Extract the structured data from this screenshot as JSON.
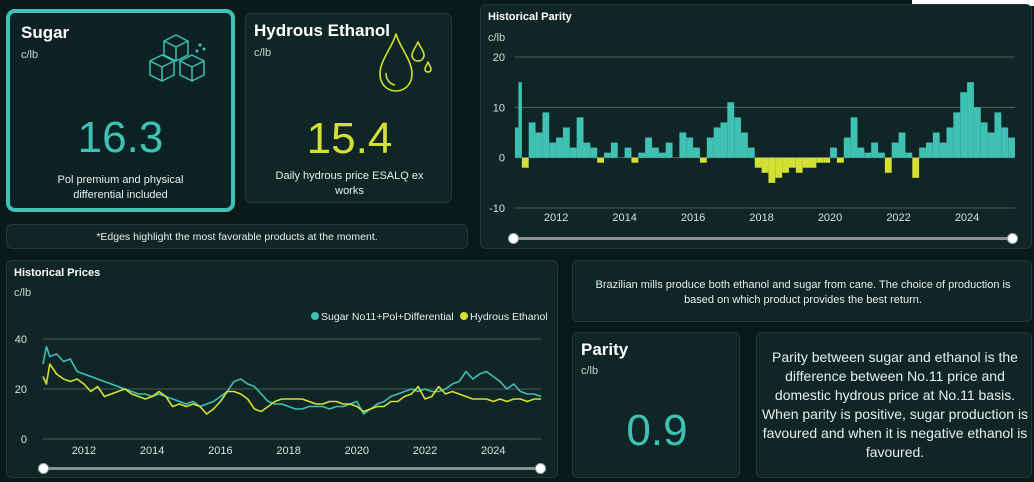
{
  "sugar_card": {
    "title": "Sugar",
    "unit": "c/lb",
    "value": "16.3",
    "desc": "Pol premium and physical differential included"
  },
  "ethanol_card": {
    "title": "Hydrous Ethanol",
    "unit": "c/lb",
    "value": "15.4",
    "desc": "Daily hydrous price ESALQ ex works"
  },
  "edges_note": "*Edges highlight the most favorable products at the moment.",
  "parity_chart": {
    "title": "Historical Parity",
    "unit": "c/lb"
  },
  "prices_chart": {
    "title": "Historical Prices",
    "unit": "c/lb",
    "legend_sugar": "Sugar No11+Pol+Differential",
    "legend_ethanol": "Hydrous Ethanol"
  },
  "mills_text": "Brazilian mills produce both ethanol and sugar from cane. The choice of production is based on which product provides the best return.",
  "parity_card": {
    "title": "Parity",
    "unit": "c/lb",
    "value": "0.9"
  },
  "parity_explain": "Parity between sugar and ethanol is the difference between No.11 price and domestic hydrous price at No.11 basis. When parity is positive, sugar production is favoured and when it is negative ethanol is favoured.",
  "colors": {
    "sugar": "#3fc1b4",
    "ethanol": "#d4e033",
    "bg": "#0a1a1b",
    "card": "#0f2526"
  },
  "icons": {
    "sugar": "sugar-cubes-icon",
    "ethanol": "ethanol-drops-icon"
  },
  "chart_data": [
    {
      "type": "area",
      "title": "Historical Parity",
      "ylabel": "c/lb",
      "ylim": [
        -10,
        20
      ],
      "yticks": [
        20,
        10,
        0,
        -10
      ],
      "xticks": [
        "2012",
        "2014",
        "2016",
        "2018",
        "2020",
        "2022",
        "2024"
      ],
      "xlim": [
        2010.9,
        2025.5
      ],
      "grid": true,
      "x": [
        2010.9,
        2011.0,
        2011.1,
        2011.3,
        2011.5,
        2011.7,
        2011.9,
        2012.1,
        2012.3,
        2012.5,
        2012.7,
        2012.9,
        2013.1,
        2013.3,
        2013.5,
        2013.7,
        2013.9,
        2014.1,
        2014.3,
        2014.5,
        2014.7,
        2014.9,
        2015.1,
        2015.3,
        2015.5,
        2015.7,
        2015.9,
        2016.1,
        2016.3,
        2016.5,
        2016.7,
        2016.9,
        2017.1,
        2017.3,
        2017.5,
        2017.7,
        2017.9,
        2018.1,
        2018.3,
        2018.5,
        2018.7,
        2018.9,
        2019.1,
        2019.3,
        2019.5,
        2019.7,
        2019.9,
        2020.1,
        2020.3,
        2020.5,
        2020.7,
        2020.9,
        2021.1,
        2021.3,
        2021.5,
        2021.7,
        2021.9,
        2022.1,
        2022.3,
        2022.5,
        2022.7,
        2022.9,
        2023.1,
        2023.3,
        2023.5,
        2023.7,
        2023.9,
        2024.1,
        2024.3,
        2024.5,
        2024.7,
        2024.9,
        2025.1,
        2025.3,
        2025.5
      ],
      "y": [
        6,
        15,
        -2,
        7,
        5,
        9,
        3,
        4,
        6,
        2,
        8,
        3,
        2,
        -1,
        1,
        3,
        0,
        2,
        -1,
        1,
        4,
        2,
        1,
        3,
        0,
        5,
        4,
        2,
        -1,
        4,
        6,
        7,
        11,
        8,
        5,
        2,
        -2,
        -3,
        -5,
        -4,
        -3,
        -2,
        -3,
        -2,
        -2,
        -1,
        -1,
        2,
        -1,
        4,
        8,
        2,
        1,
        3,
        1,
        -3,
        3,
        5,
        1,
        -4,
        2,
        3,
        5,
        3,
        6,
        9,
        13,
        15,
        10,
        7,
        5,
        9,
        6,
        4,
        2
      ]
    },
    {
      "type": "line",
      "title": "Historical Prices",
      "ylabel": "c/lb",
      "ylim": [
        0,
        40
      ],
      "yticks": [
        40,
        20,
        0
      ],
      "xticks": [
        "2012",
        "2014",
        "2016",
        "2018",
        "2020",
        "2022",
        "2024"
      ],
      "xlim": [
        2010.9,
        2025.5
      ],
      "grid": true,
      "legend": "top-right",
      "x": [
        2010.9,
        2011.0,
        2011.1,
        2011.3,
        2011.5,
        2011.7,
        2011.9,
        2012.1,
        2012.3,
        2012.5,
        2012.7,
        2012.9,
        2013.1,
        2013.3,
        2013.5,
        2013.7,
        2013.9,
        2014.1,
        2014.3,
        2014.5,
        2014.7,
        2014.9,
        2015.1,
        2015.3,
        2015.5,
        2015.7,
        2015.9,
        2016.1,
        2016.3,
        2016.5,
        2016.7,
        2016.9,
        2017.1,
        2017.3,
        2017.5,
        2017.7,
        2017.9,
        2018.1,
        2018.3,
        2018.5,
        2018.7,
        2018.9,
        2019.1,
        2019.3,
        2019.5,
        2019.7,
        2019.9,
        2020.1,
        2020.3,
        2020.5,
        2020.7,
        2020.9,
        2021.1,
        2021.3,
        2021.5,
        2021.7,
        2021.9,
        2022.1,
        2022.3,
        2022.5,
        2022.7,
        2022.9,
        2023.1,
        2023.3,
        2023.5,
        2023.7,
        2023.9,
        2024.1,
        2024.3,
        2024.5,
        2024.7,
        2024.9,
        2025.1,
        2025.3,
        2025.5
      ],
      "series": [
        {
          "name": "Sugar No11+Pol+Differential",
          "color": "#3fc1b4",
          "values": [
            30,
            37,
            33,
            34,
            31,
            32,
            27,
            26,
            25,
            24,
            23,
            22,
            21,
            20,
            19,
            18,
            18,
            17,
            18,
            17,
            16,
            15,
            14,
            15,
            13,
            14,
            15,
            17,
            19,
            23,
            24,
            22,
            21,
            18,
            15,
            14,
            14,
            13,
            12,
            12,
            13,
            13,
            13,
            12,
            13,
            13,
            14,
            15,
            10,
            12,
            14,
            15,
            17,
            18,
            19,
            20,
            19,
            20,
            19,
            19,
            20,
            22,
            23,
            27,
            24,
            26,
            27,
            25,
            23,
            20,
            22,
            19,
            18,
            18,
            17
          ]
        },
        {
          "name": "Hydrous Ethanol",
          "color": "#d4e033",
          "values": [
            25,
            22,
            30,
            26,
            24,
            23,
            24,
            22,
            19,
            21,
            17,
            18,
            19,
            20,
            18,
            17,
            16,
            17,
            19,
            17,
            13,
            14,
            13,
            14,
            13,
            10,
            12,
            15,
            19,
            19,
            18,
            16,
            12,
            11,
            13,
            15,
            16,
            16,
            16,
            16,
            15,
            14,
            14,
            15,
            15,
            14,
            14,
            13,
            11,
            12,
            13,
            13,
            15,
            15,
            17,
            18,
            21,
            16,
            17,
            21,
            18,
            19,
            18,
            17,
            16,
            16,
            16,
            15,
            16,
            15,
            16,
            16,
            15,
            16,
            16
          ]
        }
      ]
    }
  ]
}
